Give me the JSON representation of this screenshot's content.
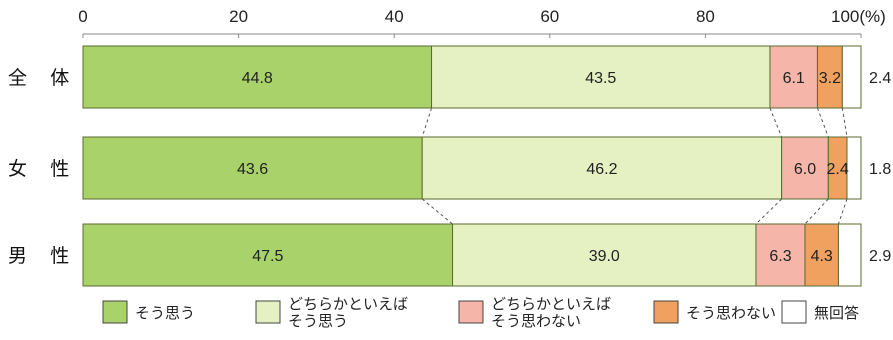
{
  "chart_data": {
    "type": "bar",
    "orientation": "horizontal",
    "stacked": true,
    "xlim": [
      0,
      100
    ],
    "x_ticks": [
      "0",
      "20",
      "40",
      "60",
      "80",
      "100(%)"
    ],
    "categories": [
      "全 体",
      "女 性",
      "男 性"
    ],
    "series": [
      {
        "name": "そう思う",
        "values": [
          44.8,
          43.6,
          47.5
        ],
        "color": "#a9d26b",
        "labels": [
          "44.8",
          "43.6",
          "47.5"
        ]
      },
      {
        "name": "どちらかといえば\nそう思う",
        "values": [
          43.5,
          46.2,
          39.0
        ],
        "color": "#e5f1c3",
        "labels": [
          "43.5",
          "46.2",
          "39.0"
        ]
      },
      {
        "name": "どちらかといえば\nそう思わない",
        "values": [
          6.1,
          6.0,
          6.3
        ],
        "color": "#f5b5a8",
        "labels": [
          "6.1",
          "6.0",
          "6.3"
        ]
      },
      {
        "name": "そう思わない",
        "values": [
          3.2,
          2.4,
          4.3
        ],
        "color": "#f0a05f",
        "labels": [
          "3.2",
          "2.4",
          "4.3"
        ]
      },
      {
        "name": "無回答",
        "values": [
          2.4,
          1.8,
          2.9
        ],
        "color": "#ffffff",
        "labels": [
          "2.4",
          "1.8",
          "2.9"
        ]
      }
    ],
    "legend_position": "bottom",
    "grid": false,
    "connector_lines": true
  }
}
